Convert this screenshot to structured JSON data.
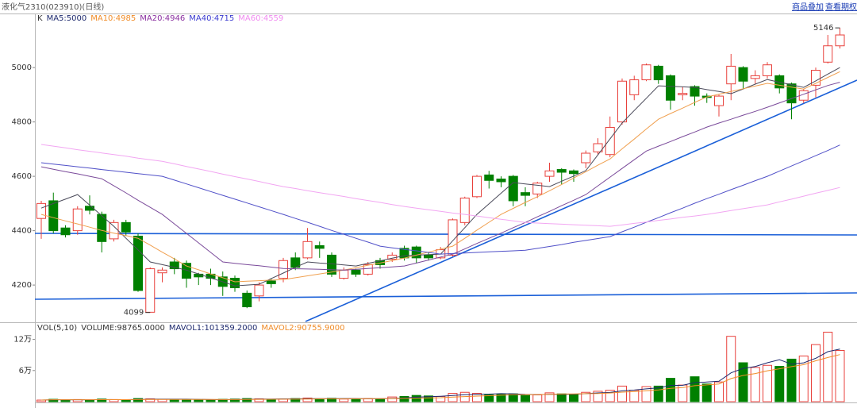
{
  "chart_data": [
    {
      "type": "candlestick",
      "title": "液化气2310(023910)(日线)",
      "links": [
        "商品叠加",
        "查看期权"
      ],
      "categories": [
        null,
        null,
        null,
        null,
        null,
        null,
        null,
        null,
        null,
        null,
        null,
        null,
        null,
        null,
        null,
        null,
        null,
        null,
        null,
        null,
        null,
        null,
        null,
        null,
        null,
        null,
        null,
        null,
        null,
        null,
        null,
        null,
        null,
        null,
        null,
        null,
        null,
        null,
        null,
        null,
        null,
        null,
        null,
        null,
        null,
        null,
        null,
        null,
        null,
        null,
        null,
        null,
        null,
        null,
        null,
        null,
        null,
        null,
        null,
        null,
        null,
        null,
        null,
        null,
        null,
        null,
        null
      ],
      "candles": {
        "name": "K",
        "up_color": "#e8413c",
        "down_color": "#008000",
        "open": [
          4445,
          4510,
          4410,
          4400,
          4490,
          4460,
          4370,
          4430,
          4380,
          4100,
          4245,
          4285,
          4280,
          4240,
          4240,
          4230,
          4225,
          4170,
          4160,
          4215,
          4225,
          4300,
          4300,
          4345,
          4310,
          4225,
          4255,
          4240,
          4290,
          4295,
          4335,
          4340,
          4310,
          4300,
          4310,
          4430,
          4525,
          4605,
          4590,
          4600,
          4540,
          4535,
          4600,
          4625,
          4620,
          4650,
          4690,
          4680,
          4800,
          4900,
          4955,
          5005,
          4970,
          4900,
          4930,
          4895,
          4860,
          4940,
          5000,
          4960,
          4970,
          4970,
          4940,
          4880,
          4935,
          5020,
          5080
        ],
        "high": [
          4510,
          4540,
          4420,
          4490,
          4530,
          4470,
          4440,
          4440,
          4390,
          4265,
          4265,
          4300,
          4290,
          4245,
          4260,
          4250,
          4235,
          4180,
          4210,
          4225,
          4300,
          4320,
          4410,
          4360,
          4320,
          4265,
          4260,
          4285,
          4300,
          4320,
          4345,
          4345,
          4320,
          4340,
          4445,
          4525,
          4605,
          4620,
          4600,
          4605,
          4560,
          4580,
          4650,
          4630,
          4625,
          4695,
          4740,
          4820,
          4960,
          4970,
          5015,
          5010,
          4975,
          4930,
          4935,
          4905,
          4900,
          5050,
          5005,
          4990,
          5020,
          4975,
          4945,
          4920,
          5000,
          5120,
          5146
        ],
        "low": [
          4370,
          4390,
          4375,
          4385,
          4460,
          4320,
          4360,
          4380,
          4175,
          4099,
          4210,
          4240,
          4190,
          4200,
          4200,
          4160,
          4175,
          4115,
          4140,
          4190,
          4210,
          4255,
          4295,
          4300,
          4230,
          4220,
          4230,
          4235,
          4260,
          4285,
          4290,
          4280,
          4290,
          4295,
          4305,
          4420,
          4520,
          4555,
          4560,
          4490,
          4490,
          4520,
          4580,
          4570,
          4580,
          4630,
          4680,
          4670,
          4790,
          4880,
          4950,
          4940,
          4845,
          4880,
          4860,
          4870,
          4820,
          4880,
          4920,
          4940,
          4960,
          4905,
          4810,
          4870,
          4890,
          5015,
          5070
        ],
        "close": [
          4500,
          4400,
          4385,
          4480,
          4475,
          4360,
          4430,
          4395,
          4180,
          4260,
          4255,
          4260,
          4225,
          4230,
          4225,
          4195,
          4190,
          4120,
          4200,
          4205,
          4290,
          4265,
          4360,
          4335,
          4240,
          4255,
          4240,
          4275,
          4275,
          4310,
          4300,
          4300,
          4300,
          4330,
          4440,
          4520,
          4600,
          4585,
          4580,
          4510,
          4530,
          4575,
          4620,
          4615,
          4610,
          4685,
          4720,
          4780,
          4950,
          4955,
          5010,
          4955,
          4880,
          4905,
          4895,
          4890,
          4895,
          5005,
          4950,
          4970,
          5010,
          4925,
          4870,
          4915,
          4990,
          5080,
          5120
        ]
      },
      "series": [
        {
          "name": "MA5:5000",
          "color": "#1e2a6e",
          "line_color": "#4a4a5a",
          "values": [
            4483,
            4500,
            4516,
            4533,
            4494,
            4455,
            4416,
            4372,
            4329,
            4285,
            4275,
            4265,
            4255,
            4241,
            4226,
            4212,
            4197,
            4200,
            4203,
            4224,
            4244,
            4265,
            4285,
            4281,
            4278,
            4274,
            4270,
            4280,
            4289,
            4299,
            4308,
            4310,
            4312,
            4314,
            4363,
            4411,
            4460,
            4499,
            4538,
            4577,
            4572,
            4567,
            4562,
            4582,
            4601,
            4621,
            4679,
            4738,
            4796,
            4842,
            4887,
            4933,
            4931,
            4929,
            4927,
            4919,
            4912,
            4904,
            4921,
            4939,
            4956,
            4946,
            4937,
            4927,
            4951,
            4976,
            5000
          ]
        },
        {
          "name": "MA10:4985",
          "color": "#f08c28",
          "line_color": "#f0a050",
          "values": [
            4460,
            4448,
            4436,
            4425,
            4413,
            4401,
            4391,
            4382,
            4372,
            4347,
            4321,
            4296,
            4270,
            4256,
            4241,
            4227,
            4212,
            4214,
            4216,
            4218,
            4220,
            4227,
            4234,
            4241,
            4248,
            4255,
            4264,
            4273,
            4281,
            4290,
            4299,
            4310,
            4321,
            4332,
            4343,
            4372,
            4402,
            4431,
            4460,
            4482,
            4504,
            4525,
            4547,
            4570,
            4594,
            4617,
            4641,
            4664,
            4701,
            4737,
            4774,
            4810,
            4831,
            4851,
            4872,
            4892,
            4902,
            4912,
            4922,
            4932,
            4942,
            4935,
            4928,
            4921,
            4942,
            4964,
            4985
          ]
        },
        {
          "name": "MA20:4946",
          "color": "#8a2fa0",
          "line_color": "#7a4a9a",
          "values": [
            4635,
            4626,
            4617,
            4609,
            4600,
            4591,
            4565,
            4539,
            4512,
            4486,
            4460,
            4425,
            4390,
            4355,
            4320,
            4285,
            4280,
            4275,
            4271,
            4266,
            4261,
            4260,
            4259,
            4258,
            4256,
            4255,
            4258,
            4261,
            4264,
            4267,
            4270,
            4281,
            4292,
            4303,
            4314,
            4333,
            4353,
            4372,
            4391,
            4411,
            4430,
            4451,
            4471,
            4492,
            4512,
            4533,
            4565,
            4597,
            4629,
            4661,
            4693,
            4711,
            4728,
            4746,
            4763,
            4781,
            4796,
            4810,
            4825,
            4839,
            4854,
            4870,
            4886,
            4902,
            4918,
            4934,
            4946
          ]
        },
        {
          "name": "MA40:4715",
          "color": "#3a3ad0",
          "line_color": "#5050c8",
          "values": [
            4650,
            4645,
            4640,
            4635,
            4630,
            4625,
            4620,
            4615,
            4610,
            4605,
            4600,
            4586,
            4572,
            4558,
            4544,
            4530,
            4516,
            4502,
            4488,
            4474,
            4460,
            4445,
            4431,
            4416,
            4401,
            4387,
            4372,
            4358,
            4343,
            4337,
            4331,
            4326,
            4320,
            4314,
            4316,
            4318,
            4320,
            4322,
            4324,
            4326,
            4328,
            4335,
            4342,
            4349,
            4357,
            4364,
            4371,
            4378,
            4396,
            4413,
            4431,
            4448,
            4466,
            4483,
            4501,
            4518,
            4534,
            4551,
            4567,
            4584,
            4600,
            4619,
            4638,
            4657,
            4676,
            4695,
            4715
          ]
        },
        {
          "name": "MA60:4559",
          "color": "#f08cf0",
          "line_color": "#f2a6f2",
          "values": [
            4717,
            4711,
            4705,
            4698,
            4692,
            4686,
            4680,
            4674,
            4667,
            4661,
            4655,
            4646,
            4636,
            4627,
            4618,
            4608,
            4599,
            4590,
            4581,
            4571,
            4562,
            4555,
            4547,
            4540,
            4533,
            4526,
            4518,
            4511,
            4504,
            4496,
            4489,
            4483,
            4477,
            4471,
            4465,
            4460,
            4454,
            4448,
            4442,
            4436,
            4430,
            4428,
            4426,
            4424,
            4422,
            4420,
            4418,
            4416,
            4421,
            4427,
            4432,
            4438,
            4443,
            4449,
            4454,
            4460,
            4467,
            4474,
            4481,
            4488,
            4495,
            4506,
            4516,
            4527,
            4538,
            4548,
            4559
          ]
        }
      ],
      "ylim": [
        4066,
        5196
      ],
      "yticks": [
        4200,
        4400,
        4600,
        4800,
        5000
      ],
      "grid": false
    },
    {
      "type": "bar",
      "title": "VOL(5,10)",
      "series": [
        {
          "name": "VOLUME:98765.0000",
          "color": "#333333",
          "up_color": "#e8413c",
          "down_color": "#008000",
          "values": [
            3000,
            4500,
            3500,
            4000,
            3000,
            5000,
            4000,
            3500,
            6000,
            5500,
            4500,
            4000,
            4500,
            3500,
            3000,
            4500,
            5000,
            6000,
            5500,
            4500,
            5000,
            6000,
            7000,
            5500,
            6500,
            5000,
            4500,
            6000,
            5500,
            9000,
            10000,
            12000,
            11000,
            10000,
            16000,
            18000,
            16000,
            13000,
            14000,
            15000,
            12000,
            13000,
            17000,
            15000,
            14000,
            18000,
            20000,
            22000,
            30000,
            22000,
            29000,
            30000,
            45000,
            32000,
            48000,
            34000,
            38000,
            126000,
            75000,
            66000,
            70000,
            68000,
            82000,
            88000,
            110000,
            134000,
            98765
          ]
        },
        {
          "name": "MAVOL1:101359.2000",
          "color": "#1e2a6e",
          "line": true,
          "values": [
            3000,
            3750,
            3667,
            3750,
            3600,
            4000,
            3900,
            3800,
            4300,
            4800,
            4700,
            4700,
            4800,
            4400,
            4000,
            3900,
            4100,
            4500,
            4900,
            5100,
            5300,
            5400,
            5600,
            5600,
            5800,
            6000,
            5900,
            5500,
            5500,
            6100,
            7000,
            8500,
            9500,
            10400,
            11800,
            13400,
            14200,
            14600,
            15400,
            15200,
            14000,
            13400,
            14200,
            14200,
            14200,
            15400,
            16800,
            17800,
            20800,
            22400,
            24600,
            26600,
            31200,
            31600,
            36800,
            37800,
            39400,
            55600,
            64200,
            67800,
            75000,
            81000,
            72200,
            74800,
            83600,
            96400,
            101359.2
          ]
        },
        {
          "name": "MAVOL2:90755.9000",
          "color": "#f08c28",
          "line": true,
          "values": [
            3000,
            3750,
            3667,
            3750,
            3600,
            3833,
            3857,
            3813,
            4056,
            4200,
            4250,
            4200,
            4200,
            4200,
            4150,
            4000,
            4050,
            4300,
            4500,
            4550,
            4700,
            4800,
            5100,
            5300,
            5400,
            5400,
            5550,
            5650,
            5750,
            5800,
            6200,
            6800,
            7250,
            7700,
            8700,
            9750,
            10750,
            11500,
            12350,
            13300,
            13500,
            13600,
            14200,
            14700,
            14800,
            15400,
            15800,
            16700,
            18300,
            19300,
            21000,
            22600,
            25600,
            27300,
            30700,
            32300,
            34200,
            44600,
            50500,
            54200,
            59600,
            63400,
            67500,
            71400,
            78800,
            85100,
            90755.9
          ]
        }
      ],
      "ylim": [
        0,
        150000
      ],
      "yticks": [
        {
          "value": 60000,
          "label": "6万"
        },
        {
          "value": 120000,
          "label": "12万"
        }
      ],
      "grid": false
    }
  ]
}
